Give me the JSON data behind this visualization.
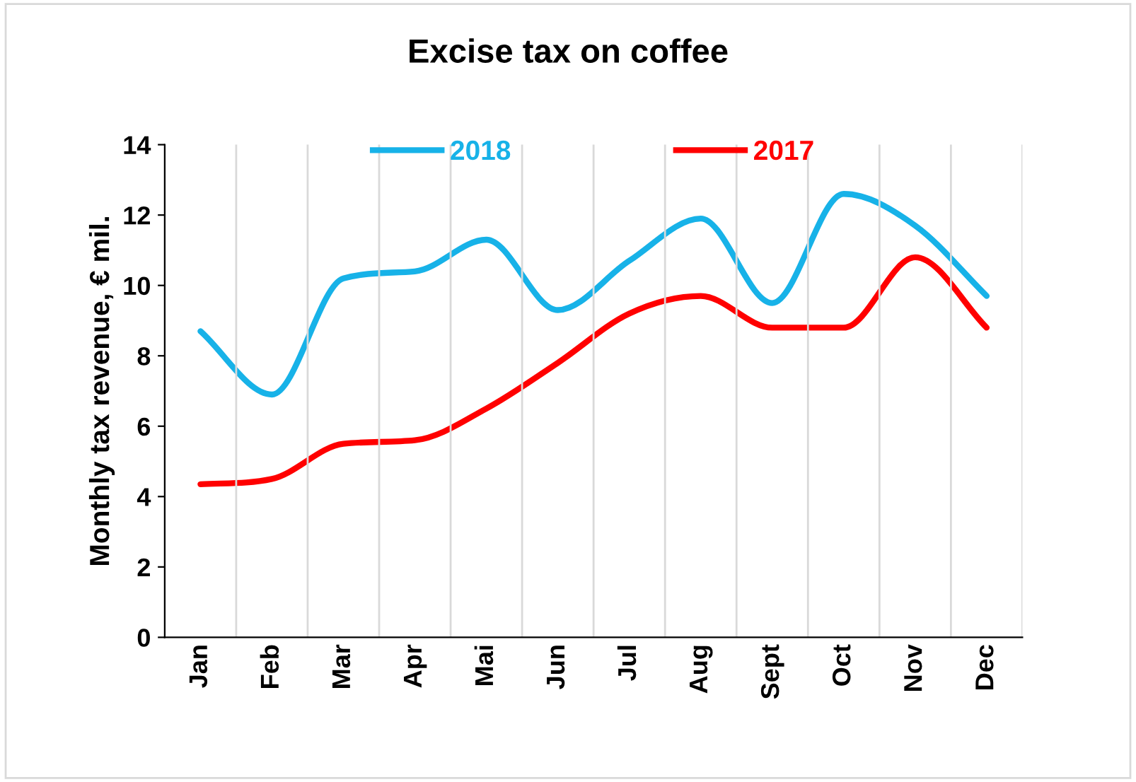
{
  "chart_data": {
    "type": "line",
    "title": "Excise tax on coffee",
    "ylabel": "Monthly tax revenue, € mil.",
    "categories": [
      "Jan",
      "Feb",
      "Mar",
      "Apr",
      "Mai",
      "Jun",
      "Jul",
      "Aug",
      "Sept",
      "Oct",
      "Nov",
      "Dec"
    ],
    "series": [
      {
        "name": "2018",
        "color": "#17b2e8",
        "values": [
          8.7,
          6.9,
          10.2,
          10.4,
          11.3,
          9.3,
          10.7,
          11.9,
          9.5,
          12.6,
          11.7,
          9.7
        ]
      },
      {
        "name": "2017",
        "color": "#ff0000",
        "values": [
          4.35,
          4.5,
          5.5,
          5.6,
          6.5,
          7.8,
          9.2,
          9.7,
          8.8,
          8.8,
          10.8,
          8.8
        ]
      }
    ],
    "ylim": [
      0,
      14
    ],
    "yticks": [
      0,
      2,
      4,
      6,
      8,
      10,
      12,
      14
    ],
    "grid": "x",
    "legend": "top",
    "marker": "none",
    "line_style": "solid"
  }
}
